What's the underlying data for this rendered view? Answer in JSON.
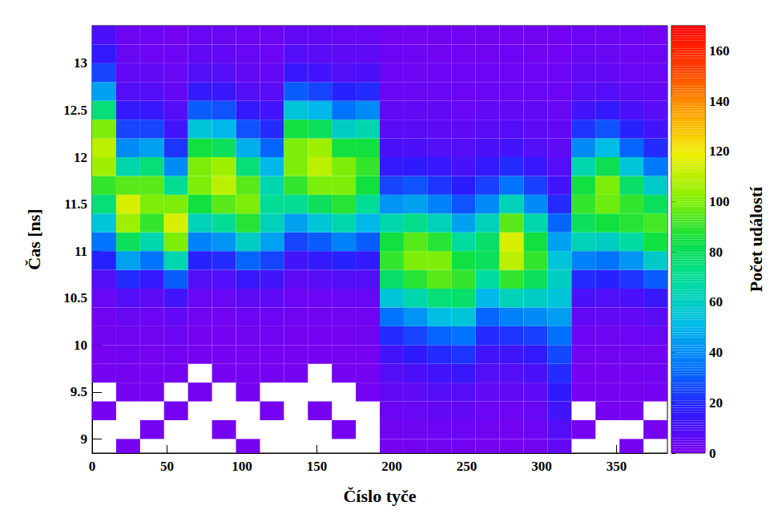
{
  "chart_data": {
    "type": "heatmap",
    "x_label": "Číslo tyče",
    "y_label": "Čas [ns]",
    "xlim": [
      0,
      384
    ],
    "xticks": [
      0,
      50,
      100,
      150,
      200,
      250,
      300,
      350
    ],
    "ylim": [
      8.85,
      13.4
    ],
    "yticks": [
      9,
      9.5,
      10,
      10.5,
      11,
      11.5,
      12,
      12.5,
      13
    ],
    "grid": false,
    "cells": {
      "x_bins": [
        0,
        16,
        32,
        48,
        64,
        80,
        96,
        112,
        128,
        144,
        160,
        176,
        192,
        208,
        224,
        240,
        256,
        272,
        288,
        304,
        320,
        336,
        352,
        368,
        384
      ],
      "y_bins": [
        8.8,
        9.0,
        9.2,
        9.4,
        9.6,
        9.8,
        10.0,
        10.2,
        10.4,
        10.6,
        10.8,
        11.0,
        11.2,
        11.4,
        11.6,
        11.8,
        12.0,
        12.2,
        12.4,
        12.6,
        12.8,
        13.0,
        13.2,
        13.4
      ],
      "counts": [
        [
          0,
          0,
          1,
          0,
          1,
          1,
          2,
          2,
          4,
          8,
          18,
          35,
          55,
          75,
          90,
          105,
          110,
          100,
          75,
          45,
          25,
          15,
          10
        ],
        [
          1,
          0,
          0,
          1,
          1,
          2,
          2,
          4,
          8,
          20,
          45,
          80,
          105,
          115,
          95,
          65,
          40,
          25,
          15,
          8,
          5,
          4,
          3
        ],
        [
          0,
          1,
          0,
          1,
          1,
          1,
          2,
          3,
          6,
          15,
          35,
          65,
          90,
          100,
          95,
          75,
          45,
          25,
          14,
          8,
          5,
          3,
          3
        ],
        [
          0,
          0,
          1,
          0,
          1,
          2,
          3,
          5,
          12,
          30,
          65,
          100,
          115,
          100,
          70,
          40,
          22,
          12,
          8,
          5,
          4,
          3,
          2
        ],
        [
          0,
          0,
          0,
          1,
          0,
          1,
          1,
          2,
          4,
          8,
          18,
          38,
          62,
          85,
          100,
          100,
          85,
          55,
          30,
          15,
          8,
          5,
          4
        ],
        [
          0,
          1,
          0,
          0,
          1,
          1,
          1,
          2,
          4,
          9,
          20,
          42,
          70,
          95,
          110,
          105,
          80,
          50,
          28,
          14,
          8,
          5,
          4
        ],
        [
          1,
          0,
          0,
          1,
          1,
          1,
          2,
          3,
          6,
          14,
          32,
          60,
          88,
          100,
          95,
          75,
          48,
          28,
          15,
          8,
          5,
          4,
          3
        ],
        [
          0,
          0,
          1,
          0,
          1,
          1,
          2,
          3,
          6,
          12,
          25,
          45,
          62,
          70,
          65,
          50,
          32,
          20,
          12,
          7,
          5,
          3,
          3
        ],
        [
          0,
          0,
          0,
          0,
          1,
          1,
          1,
          2,
          3,
          6,
          12,
          25,
          45,
          70,
          90,
          100,
          100,
          85,
          55,
          30,
          14,
          8,
          5
        ],
        [
          0,
          0,
          1,
          0,
          0,
          1,
          1,
          2,
          3,
          7,
          15,
          30,
          55,
          80,
          100,
          110,
          105,
          80,
          50,
          25,
          12,
          7,
          5
        ],
        [
          0,
          1,
          0,
          0,
          1,
          1,
          1,
          2,
          4,
          8,
          18,
          38,
          65,
          88,
          100,
          100,
          85,
          60,
          35,
          18,
          9,
          6,
          4
        ],
        [
          0,
          0,
          0,
          1,
          1,
          1,
          2,
          2,
          4,
          8,
          15,
          30,
          50,
          70,
          85,
          90,
          85,
          65,
          40,
          20,
          10,
          6,
          4
        ],
        [
          1,
          2,
          3,
          5,
          8,
          12,
          20,
          35,
          55,
          78,
          90,
          85,
          65,
          42,
          25,
          15,
          10,
          7,
          5,
          4,
          3,
          3,
          2
        ],
        [
          2,
          3,
          4,
          6,
          10,
          16,
          25,
          42,
          65,
          88,
          100,
          95,
          72,
          45,
          28,
          16,
          10,
          7,
          5,
          4,
          3,
          3,
          2
        ],
        [
          2,
          3,
          5,
          8,
          12,
          20,
          32,
          52,
          75,
          95,
          100,
          88,
          62,
          38,
          22,
          14,
          9,
          6,
          5,
          4,
          3,
          2,
          2
        ],
        [
          2,
          3,
          5,
          8,
          14,
          22,
          35,
          55,
          78,
          90,
          85,
          68,
          45,
          28,
          17,
          11,
          8,
          6,
          4,
          3,
          3,
          2,
          2
        ],
        [
          1,
          2,
          3,
          5,
          8,
          12,
          20,
          32,
          50,
          68,
          80,
          78,
          62,
          40,
          24,
          15,
          10,
          7,
          5,
          4,
          3,
          2,
          2
        ],
        [
          1,
          2,
          3,
          5,
          8,
          13,
          22,
          38,
          62,
          90,
          110,
          115,
          95,
          62,
          35,
          20,
          12,
          8,
          5,
          4,
          3,
          3,
          2
        ],
        [
          2,
          3,
          4,
          6,
          10,
          15,
          24,
          40,
          60,
          80,
          90,
          85,
          65,
          40,
          24,
          14,
          9,
          6,
          5,
          4,
          3,
          2,
          2
        ],
        [
          5,
          8,
          12,
          16,
          20,
          26,
          34,
          44,
          55,
          60,
          55,
          45,
          32,
          20,
          12,
          8,
          6,
          5,
          4,
          3,
          3,
          2,
          2
        ],
        [
          0,
          1,
          0,
          1,
          1,
          2,
          3,
          5,
          10,
          20,
          38,
          62,
          80,
          90,
          85,
          65,
          40,
          22,
          12,
          7,
          5,
          4,
          3
        ],
        [
          0,
          0,
          1,
          1,
          1,
          2,
          3,
          5,
          9,
          18,
          35,
          60,
          85,
          98,
          100,
          82,
          52,
          28,
          15,
          8,
          5,
          4,
          3
        ],
        [
          1,
          0,
          1,
          1,
          1,
          2,
          3,
          5,
          10,
          22,
          42,
          68,
          88,
          90,
          78,
          55,
          32,
          18,
          10,
          6,
          4,
          3,
          3
        ],
        [
          0,
          1,
          0,
          1,
          2,
          2,
          4,
          7,
          14,
          30,
          58,
          85,
          92,
          80,
          58,
          36,
          20,
          12,
          7,
          5,
          4,
          3,
          2
        ]
      ]
    },
    "colorbar": {
      "label": "Počet událostí",
      "range": [
        0,
        170
      ],
      "ticks": [
        0,
        20,
        40,
        60,
        80,
        100,
        120,
        140,
        160
      ],
      "colors": [
        "#7a00f0",
        "#2a1cff",
        "#0070ff",
        "#00bce8",
        "#00dca0",
        "#10e040",
        "#8cf000",
        "#f0f000",
        "#ffa000",
        "#ff4000",
        "#ff0000"
      ]
    }
  }
}
